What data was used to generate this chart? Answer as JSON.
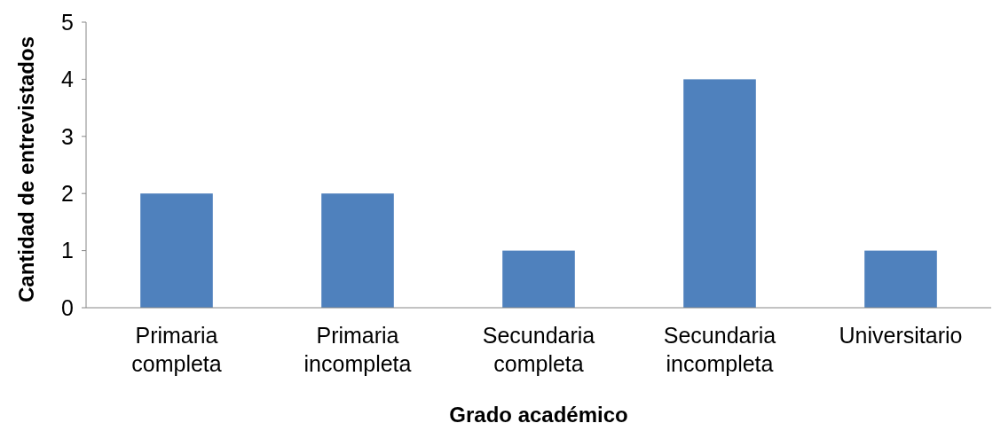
{
  "chart_data": {
    "type": "bar",
    "xlabel": "Grado académico",
    "ylabel": "Cantidad de entrevistados",
    "categories": [
      "Primaria completa",
      "Primaria incompleta",
      "Secundaria completa",
      "Secundaria incompleta",
      "Universitario"
    ],
    "values": [
      2,
      2,
      1,
      4,
      1
    ],
    "color": "#4f81bd",
    "ylim": [
      0,
      5
    ],
    "yticks": [
      0,
      1,
      2,
      3,
      4,
      5
    ]
  }
}
